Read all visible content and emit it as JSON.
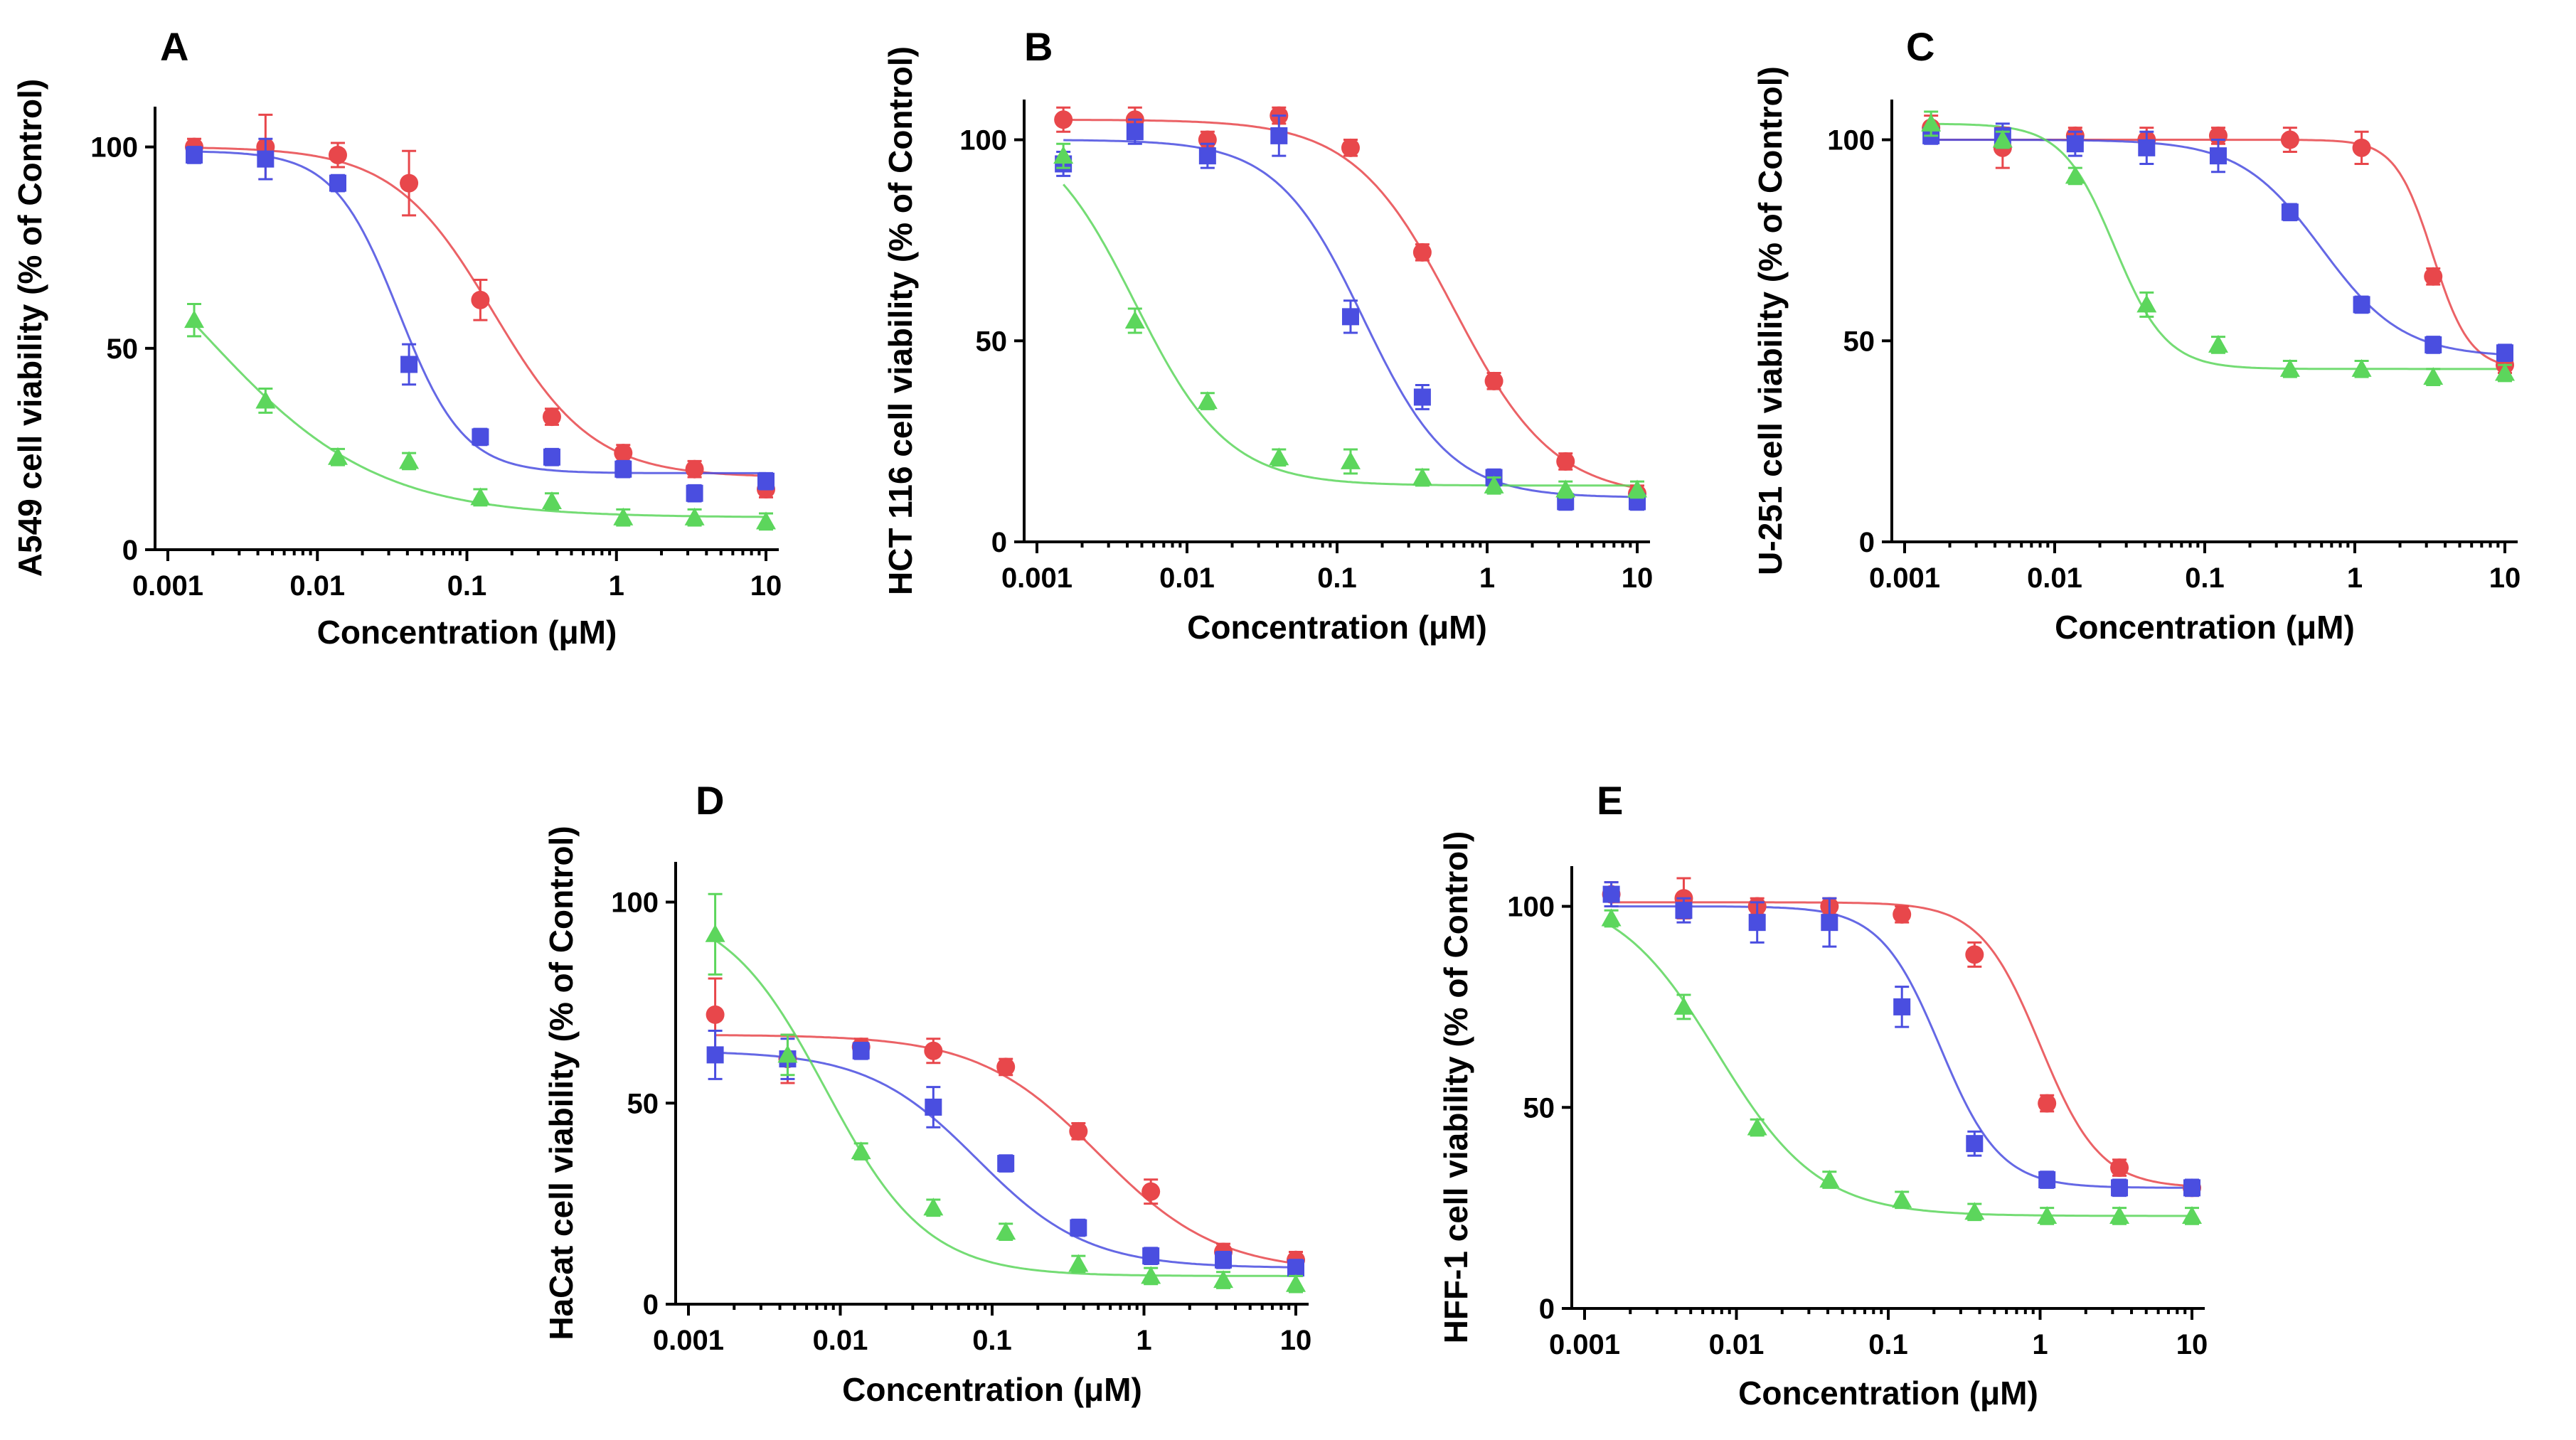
{
  "chart_data": [
    {
      "panel": "A",
      "type": "scatter",
      "ylabel": "A549 cell viability (% of Control)",
      "xlabel": "Concentration (μM)",
      "xscale": "log",
      "xlim": [
        0.001,
        10
      ],
      "ylim": [
        0,
        110
      ],
      "xticks": [
        0.001,
        0.01,
        0.1,
        1,
        10
      ],
      "xtick_labels": [
        "0.001",
        "0.01",
        "0.1",
        "1",
        "10"
      ],
      "yticks": [
        0,
        50,
        100
      ],
      "ytick_labels": [
        "0",
        "50",
        "100"
      ],
      "x": [
        0.0015,
        0.0045,
        0.0137,
        0.041,
        0.123,
        0.37,
        1.11,
        3.33,
        10
      ],
      "series": [
        {
          "name": "red circles",
          "color": "#e8474b",
          "marker": "circle",
          "values": [
            100,
            100,
            98,
            91,
            62,
            33,
            24,
            20,
            15
          ],
          "errors": [
            2,
            8,
            3,
            8,
            5,
            2,
            2,
            2,
            2
          ],
          "fit": {
            "top": 100,
            "bottom": 18,
            "ec50": 0.15,
            "hill": 1.3
          }
        },
        {
          "name": "blue squares",
          "color": "#4a4ee0",
          "marker": "square",
          "values": [
            98,
            97,
            91,
            46,
            28,
            23,
            20,
            14,
            17
          ],
          "errors": [
            2,
            5,
            2,
            5,
            2,
            2,
            2,
            2,
            2
          ],
          "fit": {
            "top": 99,
            "bottom": 19,
            "ec50": 0.035,
            "hill": 2.0
          }
        },
        {
          "name": "green triangles",
          "color": "#5cd65c",
          "marker": "triangle",
          "values": [
            57,
            37,
            23,
            22,
            13,
            12,
            8,
            8,
            7
          ],
          "errors": [
            4,
            3,
            2,
            2,
            2,
            2,
            2,
            2,
            2
          ],
          "fit": {
            "top": 100,
            "bottom": 8,
            "ec50": 0.0017,
            "hill": 0.75
          }
        }
      ]
    },
    {
      "panel": "B",
      "type": "scatter",
      "ylabel": "HCT 116 cell viability (% of Control)",
      "xlabel": "Concentration (μM)",
      "xscale": "log",
      "xlim": [
        0.001,
        10
      ],
      "ylim": [
        0,
        110
      ],
      "xticks": [
        0.001,
        0.01,
        0.1,
        1,
        10
      ],
      "xtick_labels": [
        "0.001",
        "0.01",
        "0.1",
        "1",
        "10"
      ],
      "yticks": [
        0,
        50,
        100
      ],
      "ytick_labels": [
        "0",
        "50",
        "100"
      ],
      "x": [
        0.0015,
        0.0045,
        0.0137,
        0.041,
        0.123,
        0.37,
        1.11,
        3.33,
        10
      ],
      "series": [
        {
          "name": "red circles",
          "color": "#e8474b",
          "marker": "circle",
          "values": [
            105,
            105,
            100,
            106,
            98,
            72,
            40,
            20,
            12
          ],
          "errors": [
            3,
            3,
            2,
            2,
            2,
            2,
            2,
            2,
            2
          ],
          "fit": {
            "top": 105,
            "bottom": 11,
            "ec50": 0.6,
            "hill": 1.3
          }
        },
        {
          "name": "blue squares",
          "color": "#4a4ee0",
          "marker": "square",
          "values": [
            94,
            102,
            96,
            101,
            56,
            36,
            16,
            10,
            10
          ],
          "errors": [
            3,
            3,
            3,
            5,
            4,
            3,
            2,
            2,
            2
          ],
          "fit": {
            "top": 100,
            "bottom": 11,
            "ec50": 0.15,
            "hill": 1.5
          }
        },
        {
          "name": "green triangles",
          "color": "#5cd65c",
          "marker": "triangle",
          "values": [
            96,
            55,
            35,
            21,
            20,
            16,
            14,
            13,
            13
          ],
          "errors": [
            3,
            3,
            2,
            2,
            3,
            2,
            2,
            2,
            2
          ],
          "fit": {
            "top": 105,
            "bottom": 14,
            "ec50": 0.0045,
            "hill": 1.4
          }
        }
      ]
    },
    {
      "panel": "C",
      "type": "scatter",
      "ylabel": "U-251 cell viability (% of Control)",
      "xlabel": "Concentration (μM)",
      "xscale": "log",
      "xlim": [
        0.001,
        10
      ],
      "ylim": [
        0,
        110
      ],
      "xticks": [
        0.001,
        0.01,
        0.1,
        1,
        10
      ],
      "xtick_labels": [
        "0.001",
        "0.01",
        "0.1",
        "1",
        "10"
      ],
      "yticks": [
        0,
        50,
        100
      ],
      "ytick_labels": [
        "0",
        "50",
        "100"
      ],
      "x": [
        0.0015,
        0.0045,
        0.0137,
        0.041,
        0.123,
        0.37,
        1.11,
        3.33,
        10
      ],
      "series": [
        {
          "name": "red circles",
          "color": "#e8474b",
          "marker": "circle",
          "values": [
            103,
            98,
            101,
            100,
            101,
            100,
            98,
            66,
            44
          ],
          "errors": [
            3,
            5,
            2,
            3,
            2,
            3,
            4,
            2,
            2
          ],
          "fit": {
            "top": 100,
            "bottom": 43,
            "ec50": 3.3,
            "hill": 3.5
          }
        },
        {
          "name": "blue squares",
          "color": "#4a4ee0",
          "marker": "square",
          "values": [
            101,
            101,
            99,
            98,
            96,
            82,
            59,
            49,
            47
          ],
          "errors": [
            2,
            3,
            3,
            4,
            4,
            2,
            2,
            2,
            2
          ],
          "fit": {
            "top": 100,
            "bottom": 46,
            "ec50": 0.6,
            "hill": 1.6
          }
        },
        {
          "name": "green triangles",
          "color": "#5cd65c",
          "marker": "triangle",
          "values": [
            104,
            100,
            91,
            59,
            49,
            43,
            43,
            41,
            42
          ],
          "errors": [
            3,
            2,
            2,
            3,
            2,
            2,
            2,
            2,
            2
          ],
          "fit": {
            "top": 104,
            "bottom": 43,
            "ec50": 0.025,
            "hill": 2.5
          }
        }
      ]
    },
    {
      "panel": "D",
      "type": "scatter",
      "ylabel": "HaCat cell viability (% of Control)",
      "xlabel": "Concentration (μM)",
      "xscale": "log",
      "xlim": [
        0.001,
        10
      ],
      "ylim": [
        0,
        110
      ],
      "xticks": [
        0.001,
        0.01,
        0.1,
        1,
        10
      ],
      "xtick_labels": [
        "0.001",
        "0.01",
        "0.1",
        "1",
        "10"
      ],
      "yticks": [
        0,
        50,
        100
      ],
      "ytick_labels": [
        "0",
        "50",
        "100"
      ],
      "x": [
        0.0015,
        0.0045,
        0.0137,
        0.041,
        0.123,
        0.37,
        1.11,
        3.33,
        10
      ],
      "series": [
        {
          "name": "red circles",
          "color": "#e8474b",
          "marker": "circle",
          "values": [
            72,
            61,
            64,
            63,
            59,
            43,
            28,
            13,
            11
          ],
          "errors": [
            9,
            6,
            2,
            3,
            2,
            2,
            3,
            2,
            2
          ],
          "fit": {
            "top": 67,
            "bottom": 8,
            "ec50": 0.5,
            "hill": 1.1
          }
        },
        {
          "name": "blue squares",
          "color": "#4a4ee0",
          "marker": "square",
          "values": [
            62,
            61,
            63,
            49,
            35,
            19,
            12,
            11,
            9
          ],
          "errors": [
            6,
            5,
            2,
            5,
            2,
            2,
            2,
            2,
            2
          ],
          "fit": {
            "top": 63,
            "bottom": 9,
            "ec50": 0.08,
            "hill": 1.2
          }
        },
        {
          "name": "green triangles",
          "color": "#5cd65c",
          "marker": "triangle",
          "values": [
            92,
            62,
            38,
            24,
            18,
            10,
            7,
            6,
            5
          ],
          "errors": [
            10,
            5,
            2,
            2,
            2,
            2,
            2,
            2,
            2
          ],
          "fit": {
            "top": 100,
            "bottom": 7,
            "ec50": 0.008,
            "hill": 1.3
          }
        }
      ]
    },
    {
      "panel": "E",
      "type": "scatter",
      "ylabel": "HFF-1 cell viability (% of Control)",
      "xlabel": "Concentration (μM)",
      "xscale": "log",
      "xlim": [
        0.001,
        10
      ],
      "ylim": [
        0,
        110
      ],
      "xticks": [
        0.001,
        0.01,
        0.1,
        1,
        10
      ],
      "xtick_labels": [
        "0.001",
        "0.01",
        "0.1",
        "1",
        "10"
      ],
      "yticks": [
        0,
        50,
        100
      ],
      "ytick_labels": [
        "0",
        "50",
        "100"
      ],
      "x": [
        0.0015,
        0.0045,
        0.0137,
        0.041,
        0.123,
        0.37,
        1.11,
        3.33,
        10
      ],
      "series": [
        {
          "name": "red circles",
          "color": "#e8474b",
          "marker": "circle",
          "values": [
            103,
            102,
            100,
            100,
            98,
            88,
            51,
            35,
            30
          ],
          "errors": [
            3,
            5,
            2,
            2,
            2,
            3,
            2,
            2,
            2
          ],
          "fit": {
            "top": 101,
            "bottom": 30,
            "ec50": 1.0,
            "hill": 2.2
          }
        },
        {
          "name": "blue squares",
          "color": "#4a4ee0",
          "marker": "square",
          "values": [
            103,
            99,
            96,
            96,
            75,
            41,
            32,
            30,
            30
          ],
          "errors": [
            3,
            3,
            5,
            6,
            5,
            3,
            2,
            2,
            2
          ],
          "fit": {
            "top": 100,
            "bottom": 30,
            "ec50": 0.22,
            "hill": 2.2
          }
        },
        {
          "name": "green triangles",
          "color": "#5cd65c",
          "marker": "triangle",
          "values": [
            97,
            75,
            45,
            32,
            27,
            24,
            23,
            23,
            23
          ],
          "errors": [
            2,
            3,
            2,
            2,
            2,
            2,
            2,
            2,
            2
          ],
          "fit": {
            "top": 104,
            "bottom": 23,
            "ec50": 0.0075,
            "hill": 1.3
          }
        }
      ]
    }
  ]
}
